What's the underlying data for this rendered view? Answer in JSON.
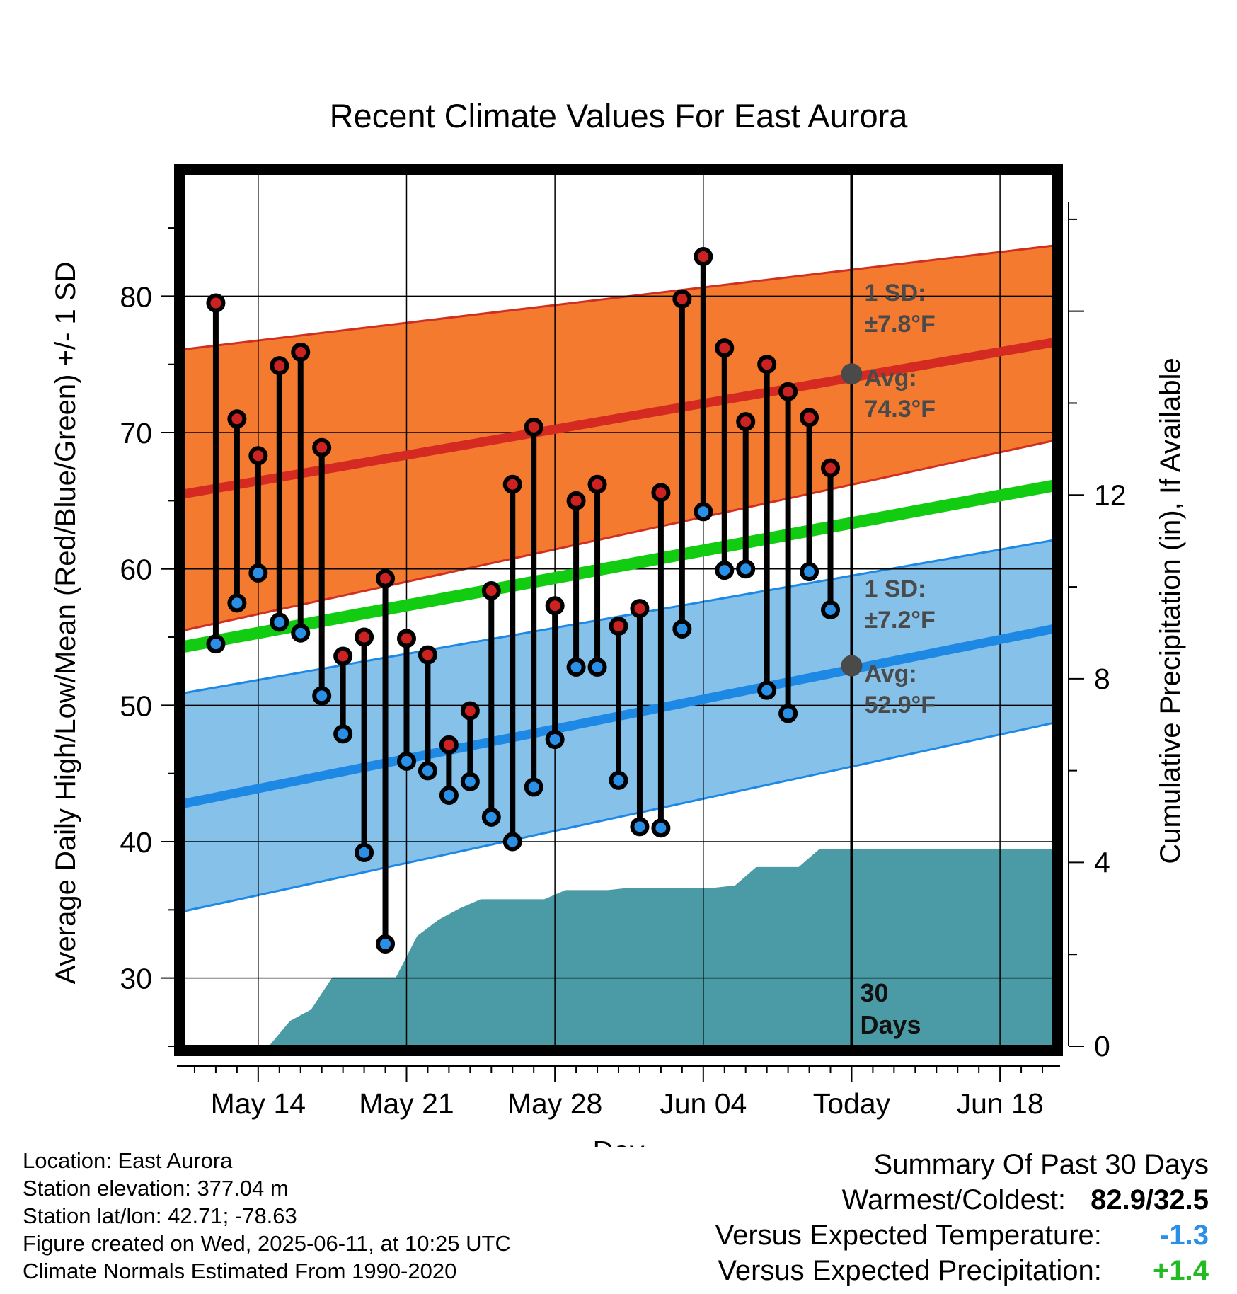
{
  "chart_data": {
    "type": "line",
    "title": "Recent Climate Values For East Aurora",
    "xlabel": "Day",
    "ylabel_left": "Average Daily High/Low/Mean (Red/Blue/Green) +/- 1 SD",
    "ylabel_right": "Cumulative Precipitation (in), If Available",
    "ylim_left": [
      25,
      89
    ],
    "ylim_right": [
      0,
      19
    ],
    "x_range_days": [
      -0.5,
      40.5
    ],
    "x_ticks": [
      {
        "day": 3,
        "label": "May 14"
      },
      {
        "day": 10,
        "label": "May 21"
      },
      {
        "day": 17,
        "label": "May 28"
      },
      {
        "day": 24,
        "label": "Jun 04"
      },
      {
        "day": 31,
        "label": "Today"
      },
      {
        "day": 38,
        "label": "Jun 18"
      }
    ],
    "y_ticks_left": [
      30,
      40,
      50,
      60,
      70,
      80
    ],
    "y_ticks_right": [
      0,
      4,
      8,
      12
    ],
    "grid": true,
    "today_day": 31,
    "today_label": "30 Days",
    "normals": {
      "high_mean": {
        "start": 65.5,
        "end": 76.6
      },
      "high_band": {
        "lower_start": 55.5,
        "lower_end": 69.4,
        "upper_start": 76.1,
        "upper_end": 83.7
      },
      "low_mean": {
        "start": 42.8,
        "end": 55.6
      },
      "low_band": {
        "lower_start": 34.9,
        "lower_end": 48.7,
        "upper_start": 50.9,
        "upper_end": 62.1
      },
      "daily_mean": {
        "start": 54.3,
        "end": 66.1
      }
    },
    "annotations": {
      "high_sd_label": "1 SD:",
      "high_sd_value": "±7.8°F",
      "high_avg_label": "Avg:",
      "high_avg_value": "74.3°F",
      "high_avg_today": 74.3,
      "low_sd_label": "1 SD:",
      "low_sd_value": "±7.2°F",
      "low_avg_label": "Avg:",
      "low_avg_value": "52.9°F",
      "low_avg_today": 52.9
    },
    "series": [
      {
        "name": "High",
        "color": "#cc2222",
        "values": [
          79.5,
          71.0,
          68.3,
          74.9,
          75.9,
          68.9,
          53.6,
          55.0,
          59.3,
          54.9,
          53.7,
          47.1,
          49.6,
          58.4,
          66.2,
          70.4,
          57.3,
          65.0,
          66.2,
          55.8,
          57.1,
          65.6,
          79.8,
          82.9,
          76.2,
          70.8,
          75.0,
          73.0,
          71.1,
          67.4
        ]
      },
      {
        "name": "Low",
        "color": "#2a8fe6",
        "values": [
          54.5,
          57.5,
          59.7,
          56.1,
          55.3,
          50.7,
          47.9,
          39.2,
          32.5,
          45.9,
          45.2,
          43.4,
          44.4,
          41.8,
          40.0,
          44.0,
          47.5,
          52.8,
          52.8,
          44.5,
          41.1,
          41.0,
          55.6,
          64.2,
          59.9,
          60.0,
          51.1,
          49.4,
          59.8,
          57.0
        ]
      }
    ],
    "precip": {
      "color": "#4a9ba5",
      "points": [
        [
          3.5,
          0
        ],
        [
          4.5,
          0.55
        ],
        [
          5.5,
          0.8
        ],
        [
          6.5,
          1.5
        ],
        [
          9.5,
          1.5
        ],
        [
          10.5,
          2.4
        ],
        [
          11.5,
          2.75
        ],
        [
          12.5,
          3.0
        ],
        [
          13.5,
          3.2
        ],
        [
          16.5,
          3.2
        ],
        [
          17.5,
          3.4
        ],
        [
          19.5,
          3.4
        ],
        [
          20.5,
          3.45
        ],
        [
          24.5,
          3.45
        ],
        [
          25.5,
          3.5
        ],
        [
          26.5,
          3.9
        ],
        [
          28.5,
          3.9
        ],
        [
          29.5,
          4.3
        ],
        [
          40.5,
          4.3
        ]
      ]
    },
    "days_x": [
      1,
      2,
      3,
      4,
      5,
      6,
      7,
      8,
      9,
      10,
      11,
      12,
      13,
      14,
      15,
      16,
      17,
      18,
      19,
      20,
      21,
      22,
      23,
      24,
      25,
      26,
      27,
      28,
      29,
      30
    ]
  },
  "footer": {
    "location": "Location: East Aurora",
    "elevation": "Station elevation: 377.04 m",
    "latlon": "Station lat/lon: 42.71; -78.63",
    "created": "Figure created on Wed, 2025-06-11, at 10:25 UTC",
    "normals": "Climate Normals Estimated From 1990-2020"
  },
  "summary": {
    "title": "Summary Of Past 30 Days",
    "warmest_label": "Warmest/Coldest:",
    "warmest_value": "82.9/32.5",
    "temp_label": "Versus Expected Temperature:",
    "temp_value": "-1.3",
    "temp_color": "#2a8fe6",
    "precip_label": "Versus Expected Precipitation:",
    "precip_value": "+1.4",
    "precip_color": "#22bb22"
  }
}
